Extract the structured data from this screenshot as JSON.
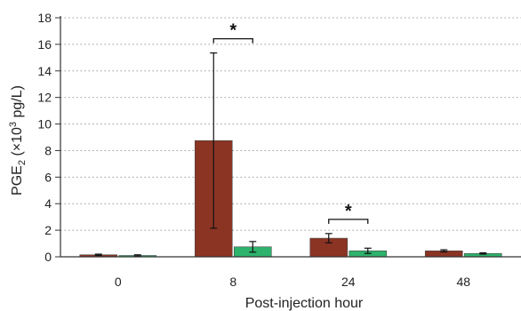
{
  "chart_data": {
    "type": "bar",
    "categories": [
      "0",
      "8",
      "24",
      "48"
    ],
    "series": [
      {
        "values": [
          0.15,
          8.75,
          1.4,
          0.45
        ],
        "errors": [
          0.05,
          6.6,
          0.35,
          0.08
        ],
        "color": "#8B3424"
      },
      {
        "values": [
          0.1,
          0.75,
          0.45,
          0.25
        ],
        "errors": [
          0.05,
          0.4,
          0.2,
          0.05
        ],
        "color": "#2DB36C"
      }
    ],
    "xlabel": "Post-injection hour",
    "ylabel": "PGE2 (×103 pg/L)",
    "ylabel_parts": {
      "main": "PGE",
      "sub": "2",
      "pre": " (×10",
      "sup": "3",
      "post": " pg/L)"
    },
    "ylim": [
      0,
      18
    ],
    "yticks": [
      "0",
      "2",
      "4",
      "6",
      "8",
      "10",
      "12",
      "14",
      "16",
      "18"
    ],
    "grid": true,
    "significance": [
      {
        "category": "8",
        "label": "*"
      },
      {
        "category": "24",
        "label": "*"
      }
    ]
  }
}
